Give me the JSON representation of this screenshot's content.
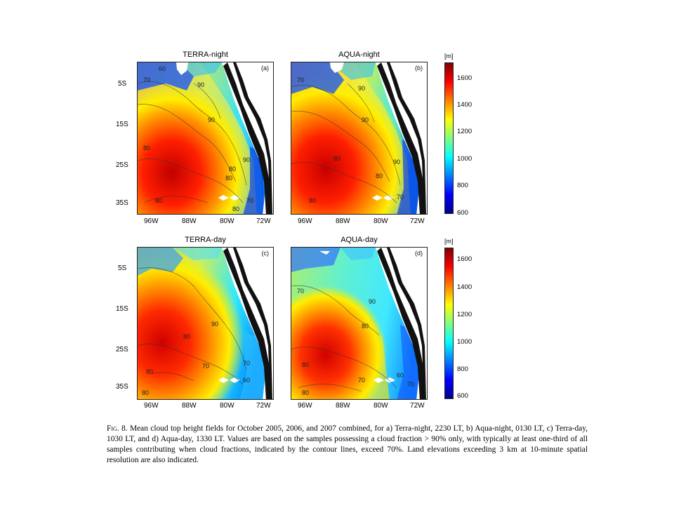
{
  "panels": [
    {
      "title": "TERRA-night",
      "tag": "(a)"
    },
    {
      "title": "AQUA-night",
      "tag": "(b)"
    },
    {
      "title": "TERRA-day",
      "tag": "(c)"
    },
    {
      "title": "AQUA-day",
      "tag": "(d)"
    }
  ],
  "axes": {
    "lat_ticks": [
      "5S",
      "15S",
      "25S",
      "35S"
    ],
    "lon_ticks": [
      "96W",
      "88W",
      "80W",
      "72W"
    ]
  },
  "contour_labels": {
    "a": [
      "70",
      "60",
      "90",
      "90",
      "80",
      "80",
      "90",
      "80",
      "70",
      "80",
      "80"
    ],
    "b": [
      "70",
      "90",
      "90",
      "80",
      "90",
      "80",
      "80",
      "70"
    ],
    "c": [
      "90",
      "80",
      "70",
      "70",
      "80",
      "80",
      "60"
    ],
    "d": [
      "70",
      "90",
      "80",
      "80",
      "70",
      "80",
      "70",
      "60"
    ]
  },
  "colorbars": [
    {
      "unit": "[m]",
      "ticks": [
        "1600",
        "1400",
        "1200",
        "1000",
        "800",
        "600"
      ]
    },
    {
      "unit": "[m]",
      "ticks": [
        "1600",
        "1400",
        "1200",
        "1000",
        "800",
        "600"
      ]
    }
  ],
  "colormap": [
    "#00008f",
    "#0000ff",
    "#0080ff",
    "#00ffff",
    "#80ff80",
    "#ffff00",
    "#ff8000",
    "#ff0000",
    "#800000"
  ],
  "caption": {
    "figure_label": "Fig. 8.",
    "text": "Mean cloud top height fields for October 2005, 2006, and 2007 combined, for a) Terra-night, 2230 LT, b) Aqua-night, 0130 LT, c) Terra-day, 1030 LT, and d) Aqua-day, 1330 LT. Values are based on the samples possessing a cloud fraction > 90% only, with typically at least one-third of all samples contributing when cloud fractions, indicated by the contour lines, exceed 70%. Land elevations exceeding 3 km at 10-minute spatial resolution are also indicated."
  }
}
